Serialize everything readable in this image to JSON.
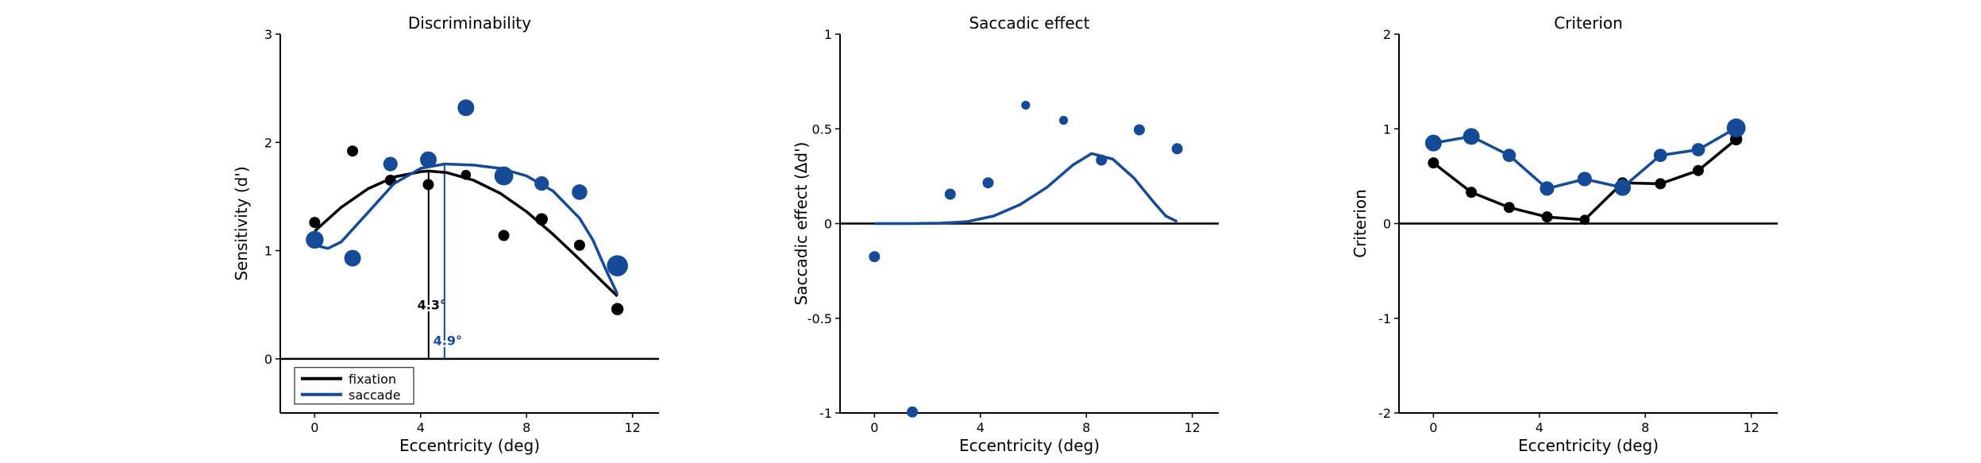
{
  "colors": {
    "fixation": "#000000",
    "saccade": "#154a96"
  },
  "chart_data": [
    {
      "type": "scatter",
      "title": "Discriminability",
      "xlabel": "Eccentricity (deg)",
      "ylabel": "Sensitivity (d')",
      "xlim": [
        -1.3,
        13
      ],
      "ylim": [
        -0.5,
        3
      ],
      "xticks": [
        0,
        4,
        8,
        12
      ],
      "yticks": [
        0,
        1,
        2,
        3
      ],
      "xtick_labels": [
        "0",
        "4",
        "8",
        "12"
      ],
      "ytick_labels": [
        "0",
        "1",
        "2",
        "3"
      ],
      "zero_line": true,
      "series": [
        {
          "name": "fixation",
          "color": "#000000",
          "points": [
            {
              "x": 0,
              "y": 1.26,
              "size": 1.0
            },
            {
              "x": 1.43,
              "y": 1.92,
              "size": 1.0
            },
            {
              "x": 2.86,
              "y": 1.65,
              "size": 1.0
            },
            {
              "x": 4.29,
              "y": 1.61,
              "size": 1.0
            },
            {
              "x": 5.71,
              "y": 1.7,
              "size": 0.9
            },
            {
              "x": 7.14,
              "y": 1.14,
              "size": 1.0
            },
            {
              "x": 8.57,
              "y": 1.29,
              "size": 1.1
            },
            {
              "x": 10.0,
              "y": 1.05,
              "size": 1.0
            },
            {
              "x": 11.43,
              "y": 0.46,
              "size": 1.1
            }
          ],
          "curve": [
            {
              "x": 0,
              "y": 1.18
            },
            {
              "x": 1,
              "y": 1.4
            },
            {
              "x": 2,
              "y": 1.57
            },
            {
              "x": 3,
              "y": 1.68
            },
            {
              "x": 4,
              "y": 1.73
            },
            {
              "x": 4.3,
              "y": 1.735
            },
            {
              "x": 5,
              "y": 1.72
            },
            {
              "x": 6,
              "y": 1.65
            },
            {
              "x": 7,
              "y": 1.53
            },
            {
              "x": 8,
              "y": 1.36
            },
            {
              "x": 9,
              "y": 1.15
            },
            {
              "x": 10,
              "y": 0.92
            },
            {
              "x": 11,
              "y": 0.68
            },
            {
              "x": 11.43,
              "y": 0.58
            }
          ]
        },
        {
          "name": "saccade",
          "color": "#154a96",
          "points": [
            {
              "x": 0,
              "y": 1.1,
              "size": 1.6
            },
            {
              "x": 1.43,
              "y": 0.93,
              "size": 1.5
            },
            {
              "x": 2.86,
              "y": 1.8,
              "size": 1.3
            },
            {
              "x": 4.29,
              "y": 1.84,
              "size": 1.5
            },
            {
              "x": 5.71,
              "y": 2.32,
              "size": 1.5
            },
            {
              "x": 7.14,
              "y": 1.69,
              "size": 1.7
            },
            {
              "x": 8.57,
              "y": 1.62,
              "size": 1.3
            },
            {
              "x": 10.0,
              "y": 1.54,
              "size": 1.4
            },
            {
              "x": 11.43,
              "y": 0.86,
              "size": 1.9
            }
          ],
          "curve": [
            {
              "x": 0,
              "y": 1.05
            },
            {
              "x": 0.5,
              "y": 1.02
            },
            {
              "x": 1,
              "y": 1.08
            },
            {
              "x": 2,
              "y": 1.35
            },
            {
              "x": 3,
              "y": 1.62
            },
            {
              "x": 4,
              "y": 1.76
            },
            {
              "x": 4.9,
              "y": 1.8
            },
            {
              "x": 6,
              "y": 1.79
            },
            {
              "x": 7,
              "y": 1.76
            },
            {
              "x": 8,
              "y": 1.69
            },
            {
              "x": 9,
              "y": 1.55
            },
            {
              "x": 10,
              "y": 1.3
            },
            {
              "x": 10.5,
              "y": 1.1
            },
            {
              "x": 11,
              "y": 0.82
            },
            {
              "x": 11.43,
              "y": 0.6
            }
          ]
        }
      ],
      "peaks": [
        {
          "series": "fixation",
          "x": 4.3,
          "y": 1.735,
          "label": "4.3°",
          "label_y": 0.5
        },
        {
          "series": "saccade",
          "x": 4.9,
          "y": 1.8,
          "label": "4.9°",
          "label_y": 0.17
        }
      ],
      "legend": {
        "position": "lower-left",
        "entries": [
          "fixation",
          "saccade"
        ]
      }
    },
    {
      "type": "scatter",
      "title": "Saccadic effect",
      "xlabel": "Eccentricity (deg)",
      "ylabel": "Saccadic effect (Δd')",
      "xlim": [
        -1.3,
        13
      ],
      "ylim": [
        -1,
        1
      ],
      "xticks": [
        0,
        4,
        8,
        12
      ],
      "yticks": [
        -1,
        -0.5,
        0,
        0.5,
        1
      ],
      "xtick_labels": [
        "0",
        "4",
        "8",
        "12"
      ],
      "ytick_labels": [
        "-1",
        "-0.5",
        "0",
        "0.5",
        "1"
      ],
      "zero_line": true,
      "series": [
        {
          "name": "saccade",
          "color": "#154a96",
          "points": [
            {
              "x": 0,
              "y": -0.175,
              "size": 1.0
            },
            {
              "x": 1.43,
              "y": -0.995,
              "size": 1.0
            },
            {
              "x": 2.86,
              "y": 0.155,
              "size": 1.0
            },
            {
              "x": 4.29,
              "y": 0.215,
              "size": 1.0
            },
            {
              "x": 5.71,
              "y": 0.625,
              "size": 0.8
            },
            {
              "x": 7.14,
              "y": 0.545,
              "size": 0.8
            },
            {
              "x": 8.57,
              "y": 0.335,
              "size": 1.0
            },
            {
              "x": 10.0,
              "y": 0.495,
              "size": 1.0
            },
            {
              "x": 11.43,
              "y": 0.395,
              "size": 1.0
            }
          ],
          "curve": [
            {
              "x": 0,
              "y": 0
            },
            {
              "x": 1.5,
              "y": 0.0
            },
            {
              "x": 2.5,
              "y": 0.002
            },
            {
              "x": 3.5,
              "y": 0.01
            },
            {
              "x": 4.5,
              "y": 0.04
            },
            {
              "x": 5.5,
              "y": 0.1
            },
            {
              "x": 6.5,
              "y": 0.19
            },
            {
              "x": 7.5,
              "y": 0.31
            },
            {
              "x": 8.2,
              "y": 0.37
            },
            {
              "x": 9,
              "y": 0.34
            },
            {
              "x": 9.8,
              "y": 0.24
            },
            {
              "x": 10.5,
              "y": 0.12
            },
            {
              "x": 11,
              "y": 0.04
            },
            {
              "x": 11.43,
              "y": 0.01
            }
          ]
        }
      ]
    },
    {
      "type": "line",
      "title": "Criterion",
      "xlabel": "Eccentricity (deg)",
      "ylabel": "Criterion",
      "xlim": [
        -1.3,
        13
      ],
      "ylim": [
        -2,
        2
      ],
      "xticks": [
        0,
        4,
        8,
        12
      ],
      "yticks": [
        -2,
        -1,
        0,
        1,
        2
      ],
      "xtick_labels": [
        "0",
        "4",
        "8",
        "12"
      ],
      "ytick_labels": [
        "-2",
        "-1",
        "0",
        "1",
        "2"
      ],
      "zero_line": true,
      "series": [
        {
          "name": "fixation",
          "color": "#000000",
          "connect": true,
          "points": [
            {
              "x": 0,
              "y": 0.64,
              "size": 1.0
            },
            {
              "x": 1.43,
              "y": 0.33,
              "size": 1.0
            },
            {
              "x": 2.86,
              "y": 0.17,
              "size": 1.0
            },
            {
              "x": 4.29,
              "y": 0.07,
              "size": 1.0
            },
            {
              "x": 5.71,
              "y": 0.04,
              "size": 0.9
            },
            {
              "x": 7.14,
              "y": 0.43,
              "size": 1.0
            },
            {
              "x": 8.57,
              "y": 0.42,
              "size": 1.0
            },
            {
              "x": 10.0,
              "y": 0.56,
              "size": 1.0
            },
            {
              "x": 11.43,
              "y": 0.89,
              "size": 1.1
            }
          ]
        },
        {
          "name": "saccade",
          "color": "#154a96",
          "connect": true,
          "points": [
            {
              "x": 0,
              "y": 0.85,
              "size": 1.5
            },
            {
              "x": 1.43,
              "y": 0.92,
              "size": 1.5
            },
            {
              "x": 2.86,
              "y": 0.72,
              "size": 1.2
            },
            {
              "x": 4.29,
              "y": 0.37,
              "size": 1.3
            },
            {
              "x": 5.71,
              "y": 0.47,
              "size": 1.3
            },
            {
              "x": 7.14,
              "y": 0.38,
              "size": 1.5
            },
            {
              "x": 8.57,
              "y": 0.72,
              "size": 1.2
            },
            {
              "x": 10.0,
              "y": 0.78,
              "size": 1.2
            },
            {
              "x": 11.43,
              "y": 1.01,
              "size": 1.7
            }
          ]
        }
      ]
    }
  ]
}
